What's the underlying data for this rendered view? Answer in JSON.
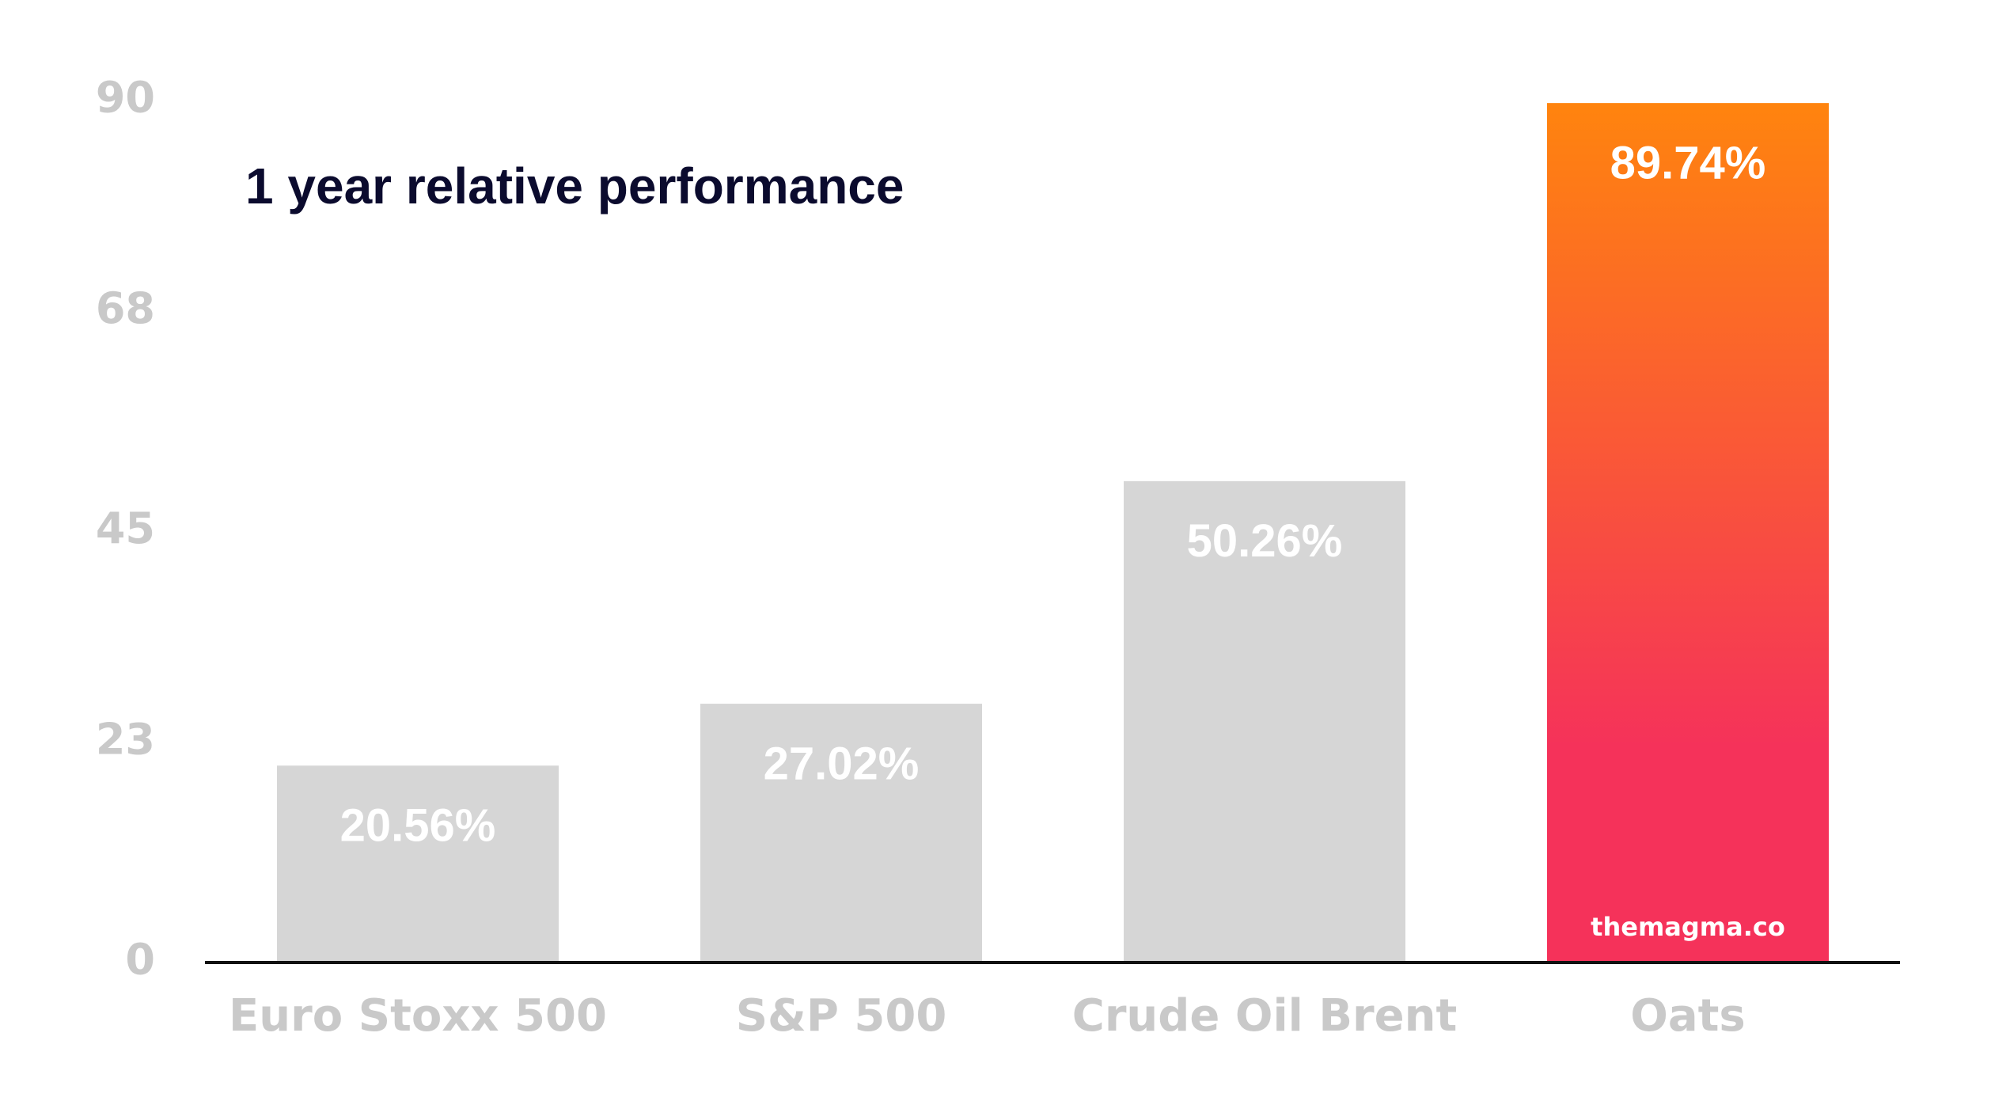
{
  "chart_data": {
    "type": "bar",
    "title": "1 year relative performance",
    "categories": [
      "Euro Stoxx 500",
      "S&P 500",
      "Crude Oil Brent",
      "Oats"
    ],
    "values": [
      20.56,
      27.02,
      50.26,
      89.74
    ],
    "value_labels": [
      "20.56%",
      "27.02%",
      "50.26%",
      "89.74%"
    ],
    "colors": [
      "#d6d6d6",
      "#d6d6d6",
      "#d6d6d6",
      [
        "#ff840e",
        "#f5325a"
      ]
    ],
    "ylim": [
      0,
      90
    ],
    "yticks": [
      0,
      23,
      45,
      68,
      90
    ],
    "watermark": "themagma.co"
  }
}
